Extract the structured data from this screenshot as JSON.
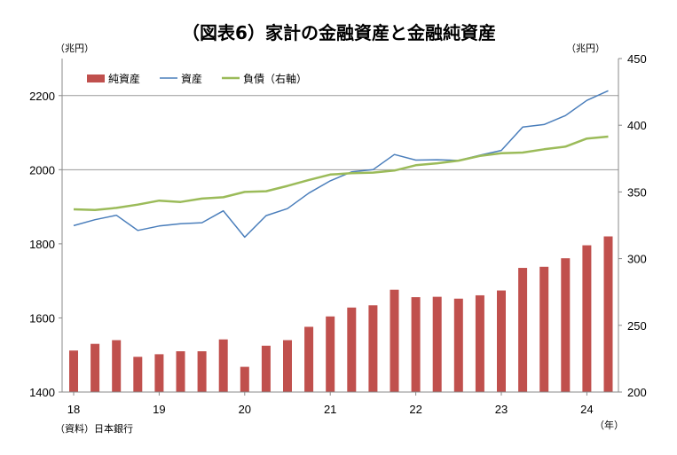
{
  "chart_data": {
    "type": "bar+line",
    "title": "（図表6）家計の金融資産と金融純資産",
    "left_unit": "（兆円）",
    "right_unit": "（兆円）",
    "x_unit": "（年）",
    "source": "（資料）日本銀行",
    "x_tick_labels": [
      "18",
      "19",
      "20",
      "21",
      "22",
      "23",
      "24"
    ],
    "left_axis": {
      "ylim": [
        1400,
        2300
      ],
      "ticks": [
        1400,
        1600,
        1800,
        2000,
        2200
      ]
    },
    "right_axis": {
      "ylim": [
        200,
        450
      ],
      "ticks": [
        200,
        250,
        300,
        350,
        400,
        450
      ]
    },
    "grid": "horizontal at 2000 and 2200",
    "legend": "top-left",
    "periods": [
      "18Q1",
      "18Q2",
      "18Q3",
      "18Q4",
      "19Q1",
      "19Q2",
      "19Q3",
      "19Q4",
      "20Q1",
      "20Q2",
      "20Q3",
      "20Q4",
      "21Q1",
      "21Q2",
      "21Q3",
      "21Q4",
      "22Q1",
      "22Q2",
      "22Q3",
      "22Q4",
      "23Q1",
      "23Q2",
      "23Q3",
      "23Q4",
      "24Q1",
      "24Q2"
    ],
    "series": [
      {
        "name": "純資産",
        "type": "bar",
        "axis": "left",
        "color": "#c0504d",
        "values": [
          1512,
          1530,
          1540,
          1495,
          1502,
          1510,
          1510,
          1542,
          1468,
          1525,
          1540,
          1576,
          1604,
          1628,
          1634,
          1676,
          1656,
          1657,
          1652,
          1661,
          1674,
          1735,
          1738,
          1761,
          1796,
          1820
        ]
      },
      {
        "name": "資産",
        "type": "line",
        "axis": "left",
        "color": "#4a7ebb",
        "values": [
          1849,
          1865,
          1877,
          1836,
          1848,
          1854,
          1857,
          1889,
          1818,
          1876,
          1895,
          1937,
          1970,
          1994,
          2000,
          2041,
          2026,
          2027,
          2025,
          2039,
          2052,
          2115,
          2122,
          2146,
          2187,
          2213
        ]
      },
      {
        "name": "負債（右軸）",
        "type": "line",
        "axis": "right",
        "color": "#9bbb59",
        "values": [
          337,
          336.5,
          338,
          340.5,
          343.5,
          342.5,
          345,
          346,
          350,
          350.5,
          354.5,
          359,
          363,
          364,
          364.5,
          366,
          370,
          371.5,
          373.5,
          377,
          379,
          379.5,
          382,
          384,
          390,
          391.5
        ]
      }
    ]
  }
}
